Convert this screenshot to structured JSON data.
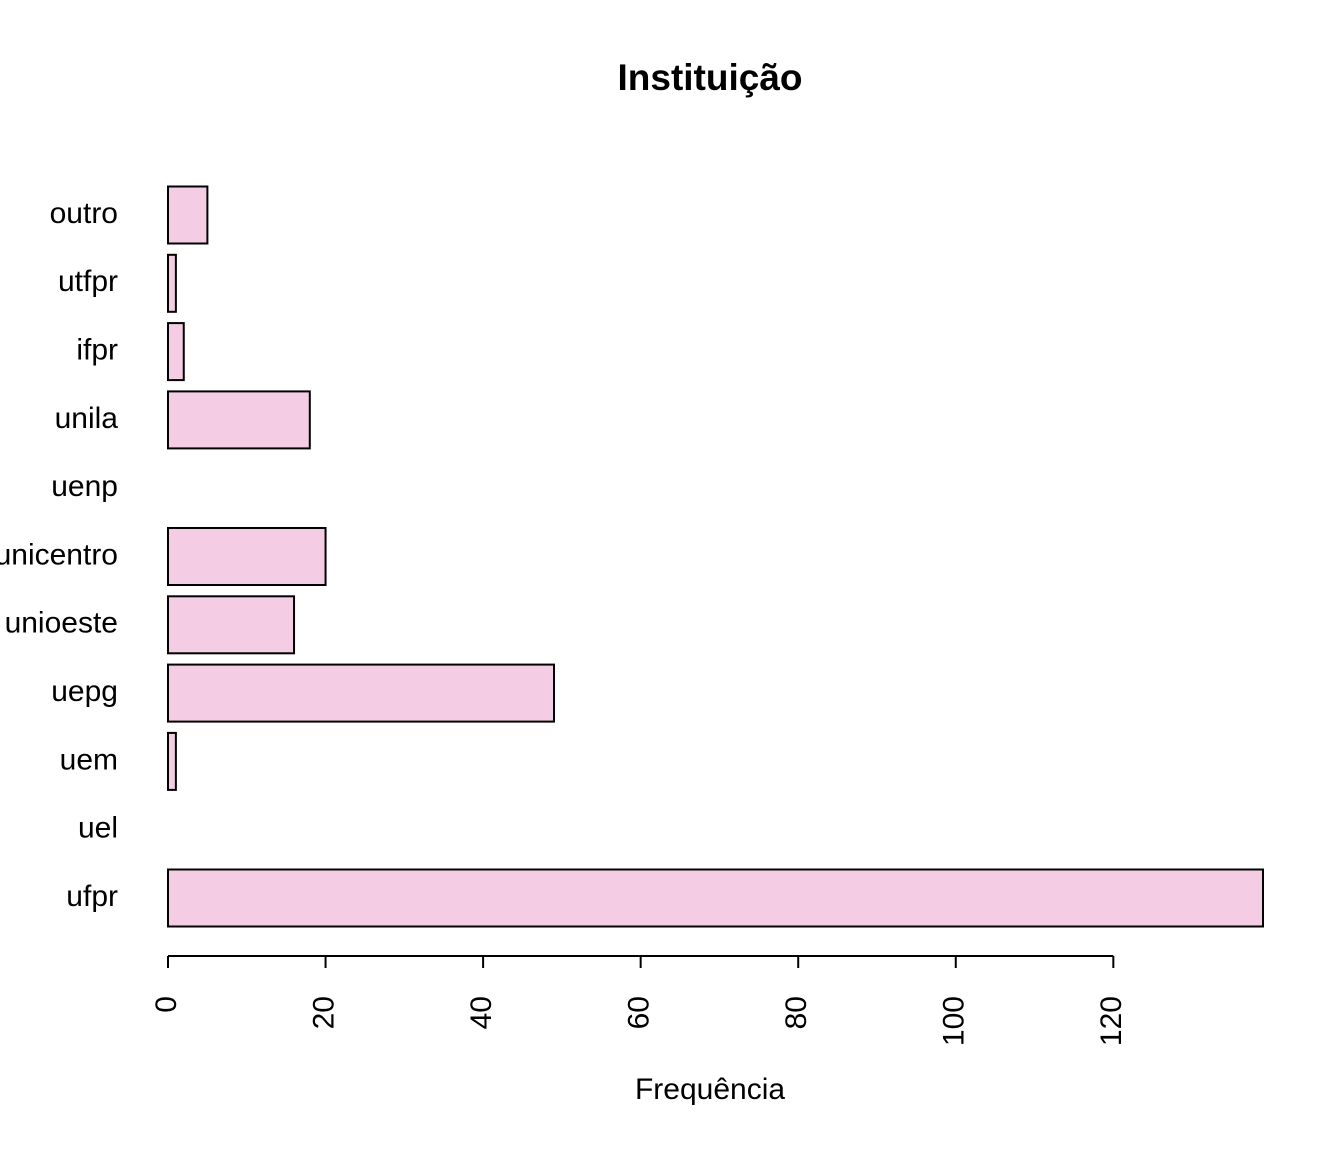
{
  "chart_data": {
    "type": "barh",
    "title": "Instituição",
    "xlabel": "Frequência",
    "categories": [
      "ufpr",
      "uel",
      "uem",
      "uepg",
      "unioeste",
      "unicentro",
      "uenp",
      "unila",
      "ifpr",
      "utfpr",
      "outro"
    ],
    "values": [
      139,
      0,
      1,
      49,
      16,
      20,
      0,
      18,
      2,
      1,
      5
    ],
    "color": "#f4cce4",
    "xlim": [
      0,
      139
    ],
    "xticks": [
      0,
      20,
      40,
      60,
      80,
      100,
      120
    ]
  }
}
